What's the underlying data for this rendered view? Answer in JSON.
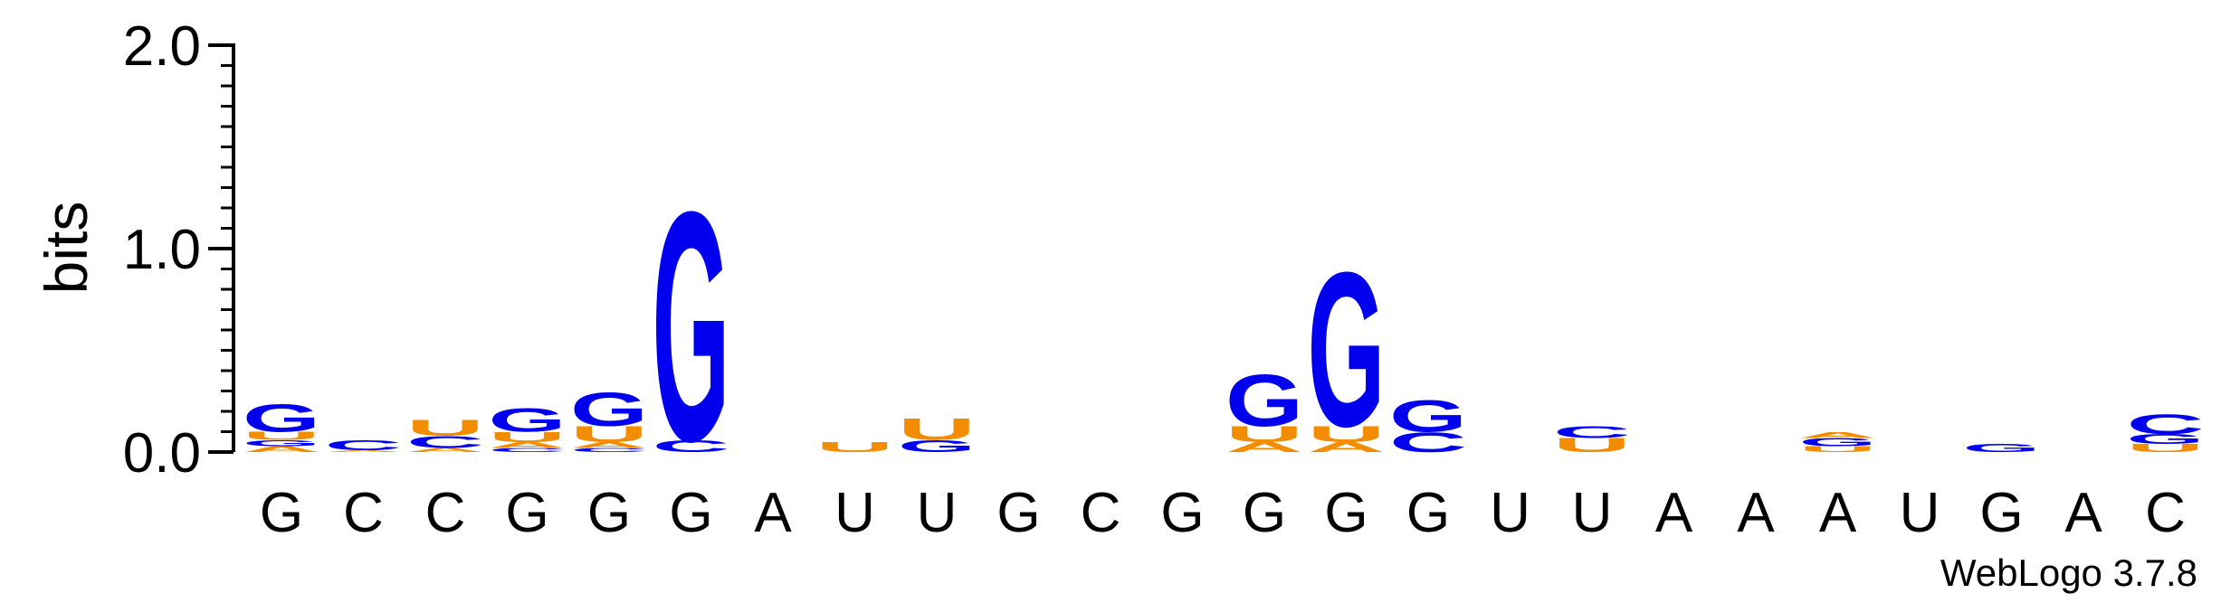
{
  "chart_data": {
    "type": "sequence-logo",
    "ylabel": "bits",
    "ylim": [
      0,
      2.0
    ],
    "y_ticks": [
      {
        "value": 0.0,
        "label": "0.0"
      },
      {
        "value": 1.0,
        "label": "1.0"
      },
      {
        "value": 2.0,
        "label": "2.0"
      }
    ],
    "x_labels": [
      "G",
      "C",
      "C",
      "G",
      "G",
      "G",
      "A",
      "U",
      "U",
      "G",
      "C",
      "G",
      "G",
      "G",
      "G",
      "U",
      "U",
      "A",
      "A",
      "A",
      "U",
      "G",
      "A",
      "C"
    ],
    "colors": {
      "G": "#0000ee",
      "C": "#0000ee",
      "U": "#f28c00",
      "A": "#f28c00"
    },
    "positions": [
      [
        {
          "letter": "A",
          "bits": 0.03
        },
        {
          "letter": "G",
          "bits": 0.03
        },
        {
          "letter": "U",
          "bits": 0.04
        },
        {
          "letter": "G",
          "bits": 0.14
        }
      ],
      [
        {
          "letter": "A",
          "bits": 0.01
        },
        {
          "letter": "C",
          "bits": 0.05
        }
      ],
      [
        {
          "letter": "A",
          "bits": 0.02
        },
        {
          "letter": "C",
          "bits": 0.06
        },
        {
          "letter": "U",
          "bits": 0.08
        }
      ],
      [
        {
          "letter": "C",
          "bits": 0.02
        },
        {
          "letter": "A",
          "bits": 0.03
        },
        {
          "letter": "U",
          "bits": 0.05
        },
        {
          "letter": "G",
          "bits": 0.12
        }
      ],
      [
        {
          "letter": "C",
          "bits": 0.02
        },
        {
          "letter": "A",
          "bits": 0.03
        },
        {
          "letter": "U",
          "bits": 0.08
        },
        {
          "letter": "G",
          "bits": 0.17
        }
      ],
      [
        {
          "letter": "C",
          "bits": 0.06
        },
        {
          "letter": "G",
          "bits": 1.16
        }
      ],
      [],
      [
        {
          "letter": "U",
          "bits": 0.05
        }
      ],
      [
        {
          "letter": "G",
          "bits": 0.06
        },
        {
          "letter": "U",
          "bits": 0.11
        }
      ],
      [],
      [],
      [],
      [
        {
          "letter": "A",
          "bits": 0.05
        },
        {
          "letter": "U",
          "bits": 0.08
        },
        {
          "letter": "G",
          "bits": 0.26
        }
      ],
      [
        {
          "letter": "A",
          "bits": 0.05
        },
        {
          "letter": "U",
          "bits": 0.08
        },
        {
          "letter": "G",
          "bits": 0.78
        }
      ],
      [
        {
          "letter": "C",
          "bits": 0.1
        },
        {
          "letter": "G",
          "bits": 0.16
        }
      ],
      [],
      [
        {
          "letter": "U",
          "bits": 0.07
        },
        {
          "letter": "C",
          "bits": 0.06
        }
      ],
      [],
      [],
      [
        {
          "letter": "U",
          "bits": 0.03
        },
        {
          "letter": "G",
          "bits": 0.04
        },
        {
          "letter": "A",
          "bits": 0.03
        }
      ],
      [],
      [
        {
          "letter": "G",
          "bits": 0.04
        }
      ],
      [],
      [
        {
          "letter": "U",
          "bits": 0.04
        },
        {
          "letter": "G",
          "bits": 0.05
        },
        {
          "letter": "C",
          "bits": 0.1
        }
      ]
    ],
    "footer": "WebLogo 3.7.8"
  }
}
